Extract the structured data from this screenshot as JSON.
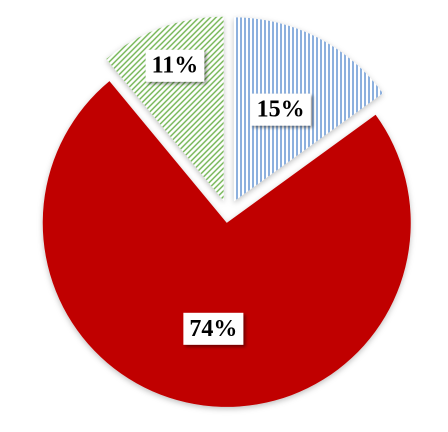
{
  "chart_data": {
    "type": "pie",
    "categories": [
      null,
      null,
      null
    ],
    "values": [
      15,
      74,
      11
    ],
    "value_labels": [
      "15%",
      "74%",
      "11%"
    ],
    "colors": [
      "#5b8fd0",
      "#c00000",
      "#6fb34f"
    ],
    "hatches": [
      "vertical",
      "solid",
      "diagonal"
    ],
    "start_angle": 0,
    "direction": "clockwise"
  }
}
